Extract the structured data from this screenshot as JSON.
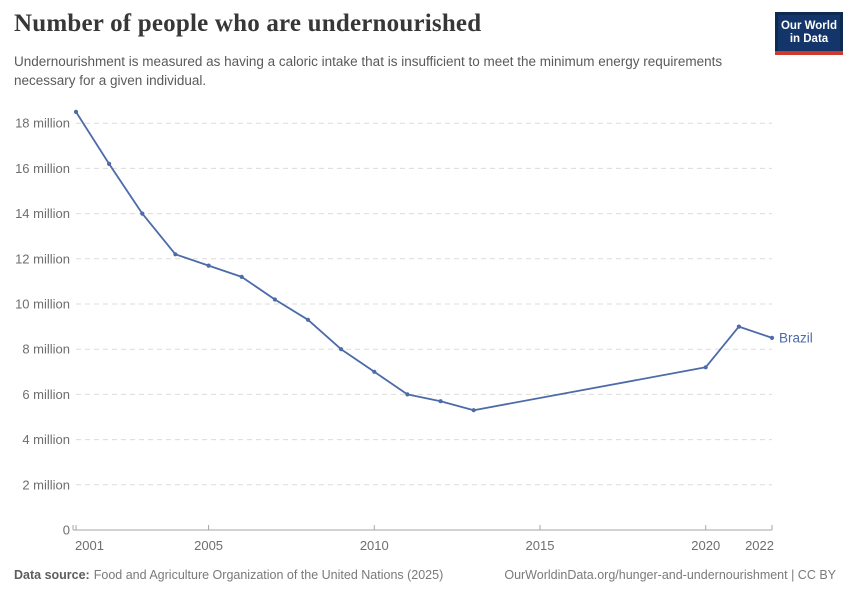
{
  "header": {
    "title": "Number of people who are undernourished",
    "subtitle": "Undernourishment is measured as having a caloric intake that is insufficient to meet the minimum energy requirements necessary for a given individual.",
    "logo": {
      "line1": "Our World",
      "line2": "in Data"
    }
  },
  "chart_data": {
    "type": "line",
    "title": "Number of people who are undernourished",
    "unit": "million people",
    "xlim": [
      2001,
      2022
    ],
    "ylim": [
      0,
      18
    ],
    "grid": "horizontal-dashed",
    "legend": "end-of-line-label",
    "x": [
      2001,
      2002,
      2003,
      2004,
      2005,
      2006,
      2007,
      2008,
      2009,
      2010,
      2011,
      2012,
      2013,
      2020,
      2021,
      2022
    ],
    "series": [
      {
        "name": "Brazil",
        "color": "#4c6ba8",
        "values_million": [
          18.5,
          16.2,
          14.0,
          12.2,
          11.7,
          11.2,
          10.2,
          9.3,
          8.0,
          7.0,
          6.0,
          5.7,
          5.3,
          7.2,
          9.0,
          8.5
        ],
        "gap_years_no_markers": [
          2014,
          2015,
          2016,
          2017,
          2018,
          2019
        ]
      }
    ],
    "yticks": [
      {
        "value": 0,
        "label": "0"
      },
      {
        "value": 2,
        "label": "2 million"
      },
      {
        "value": 4,
        "label": "4 million"
      },
      {
        "value": 6,
        "label": "6 million"
      },
      {
        "value": 8,
        "label": "8 million"
      },
      {
        "value": 10,
        "label": "10 million"
      },
      {
        "value": 12,
        "label": "12 million"
      },
      {
        "value": 14,
        "label": "14 million"
      },
      {
        "value": 16,
        "label": "16 million"
      },
      {
        "value": 18,
        "label": "18 million"
      }
    ],
    "xticks": [
      {
        "value": 2001,
        "label": "2001"
      },
      {
        "value": 2005,
        "label": "2005"
      },
      {
        "value": 2010,
        "label": "2010"
      },
      {
        "value": 2015,
        "label": "2015"
      },
      {
        "value": 2020,
        "label": "2020"
      },
      {
        "value": 2022,
        "label": "2022"
      }
    ]
  },
  "footer": {
    "datasource_label": "Data source:",
    "datasource_text": "Food and Agriculture Organization of the United Nations (2025)",
    "link": "OurWorldinData.org/hunger-and-undernourishment | CC BY"
  },
  "colors": {
    "line": "#4c6ba8",
    "logo_navy": "#14356a",
    "logo_frame": "#0d2a52",
    "logo_red": "#cf3a2e",
    "gridline": "#dcdcdc",
    "axis": "#a6a6a6",
    "tick_label": "#6e6e6e"
  }
}
